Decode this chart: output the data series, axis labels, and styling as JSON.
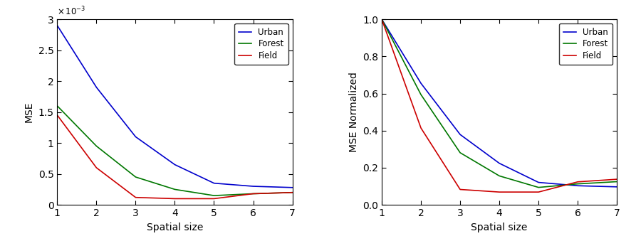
{
  "x": [
    1,
    2,
    3,
    4,
    5,
    6,
    7
  ],
  "urban_mse": [
    0.0029,
    0.0019,
    0.0011,
    0.00065,
    0.00035,
    0.0003,
    0.00028
  ],
  "forest_mse": [
    0.0016,
    0.00095,
    0.00045,
    0.00025,
    0.00015,
    0.00018,
    0.0002
  ],
  "field_mse": [
    0.00145,
    0.0006,
    0.00012,
    0.0001,
    0.0001,
    0.00018,
    0.0002
  ],
  "urban_norm": [
    1.0,
    0.655,
    0.379,
    0.224,
    0.121,
    0.103,
    0.097
  ],
  "forest_norm": [
    1.0,
    0.594,
    0.281,
    0.156,
    0.094,
    0.113,
    0.125
  ],
  "field_norm": [
    1.0,
    0.414,
    0.083,
    0.069,
    0.069,
    0.124,
    0.138
  ],
  "urban_color": "#0000CC",
  "forest_color": "#007700",
  "field_color": "#CC0000",
  "ylabel_left": "MSE",
  "ylabel_right": "MSE Normalized",
  "xlabel": "Spatial size",
  "ylim_left": [
    0,
    0.003
  ],
  "ylim_right": [
    0,
    1.0
  ],
  "yticks_left": [
    0,
    0.0005,
    0.001,
    0.0015,
    0.002,
    0.0025,
    0.003
  ],
  "ytick_labels_left": [
    "0",
    "0.5",
    "1",
    "1.5",
    "2",
    "2.5",
    "3"
  ],
  "yticks_right": [
    0,
    0.2,
    0.4,
    0.6,
    0.8,
    1.0
  ],
  "xticks": [
    1,
    2,
    3,
    4,
    5,
    6,
    7
  ],
  "background_color": "#ffffff",
  "legend_labels": [
    "Urban",
    "Forest",
    "Field"
  ],
  "fig_width": 8.93,
  "fig_height": 3.39,
  "line_width": 1.2
}
